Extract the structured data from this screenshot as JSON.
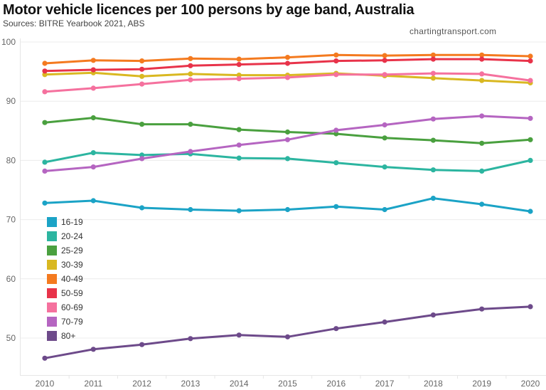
{
  "header": {
    "title": "Motor vehicle licences per 100 persons by age band, Australia",
    "subtitle": "Sources: BITRE Yearbook 2021, ABS",
    "credit": "chartingtransport.com"
  },
  "chart_data": {
    "type": "line",
    "title": "Motor vehicle licences per 100 persons by age band, Australia",
    "subtitle": "Sources: BITRE Yearbook 2021, ABS",
    "xlabel": "",
    "ylabel": "",
    "x": [
      2010,
      2011,
      2012,
      2013,
      2014,
      2015,
      2016,
      2017,
      2018,
      2019,
      2020
    ],
    "x_tick_labels": [
      "2010",
      "2011",
      "2012",
      "2013",
      "2014",
      "2015",
      "2016",
      "2017",
      "2018",
      "2019",
      "2020"
    ],
    "y_ticks": [
      50,
      60,
      70,
      80,
      90,
      100
    ],
    "y_tick_labels": [
      "50",
      "60",
      "70",
      "80",
      "90",
      "100"
    ],
    "ylim": [
      43.7,
      100.6
    ],
    "grid": true,
    "legend_position": "left-middle",
    "markers": true,
    "series": [
      {
        "name": "16-19",
        "color": "#1ba3c6",
        "values": [
          72.8,
          73.2,
          72.0,
          71.7,
          71.5,
          71.7,
          72.2,
          71.7,
          73.6,
          72.6,
          71.4
        ]
      },
      {
        "name": "20-24",
        "color": "#2cb5a0",
        "values": [
          79.7,
          81.3,
          80.9,
          81.1,
          80.4,
          80.3,
          79.6,
          78.9,
          78.4,
          78.2,
          80.0
        ]
      },
      {
        "name": "25-29",
        "color": "#4aa03f",
        "values": [
          86.4,
          87.2,
          86.1,
          86.1,
          85.2,
          84.8,
          84.5,
          83.8,
          83.4,
          82.9,
          83.5
        ]
      },
      {
        "name": "30-39",
        "color": "#d9b821",
        "values": [
          94.5,
          94.8,
          94.2,
          94.6,
          94.4,
          94.4,
          94.7,
          94.3,
          93.9,
          93.5,
          93.1
        ]
      },
      {
        "name": "40-49",
        "color": "#f47a1f",
        "values": [
          96.4,
          96.9,
          96.8,
          97.2,
          97.1,
          97.4,
          97.8,
          97.7,
          97.8,
          97.8,
          97.6
        ]
      },
      {
        "name": "50-59",
        "color": "#e8334a",
        "values": [
          95.1,
          95.3,
          95.4,
          96.0,
          96.2,
          96.4,
          96.8,
          96.9,
          97.1,
          97.1,
          96.8
        ]
      },
      {
        "name": "60-69",
        "color": "#f5719e",
        "values": [
          91.6,
          92.2,
          92.9,
          93.6,
          93.8,
          94.0,
          94.5,
          94.5,
          94.7,
          94.6,
          93.5
        ]
      },
      {
        "name": "70-79",
        "color": "#b565c1",
        "values": [
          78.2,
          78.9,
          80.3,
          81.5,
          82.6,
          83.5,
          85.1,
          86.0,
          87.0,
          87.5,
          87.1
        ]
      },
      {
        "name": "80+",
        "color": "#6d4a8a",
        "values": [
          46.6,
          48.1,
          48.9,
          49.9,
          50.5,
          50.2,
          51.6,
          52.7,
          53.9,
          54.9,
          55.3
        ]
      }
    ]
  }
}
